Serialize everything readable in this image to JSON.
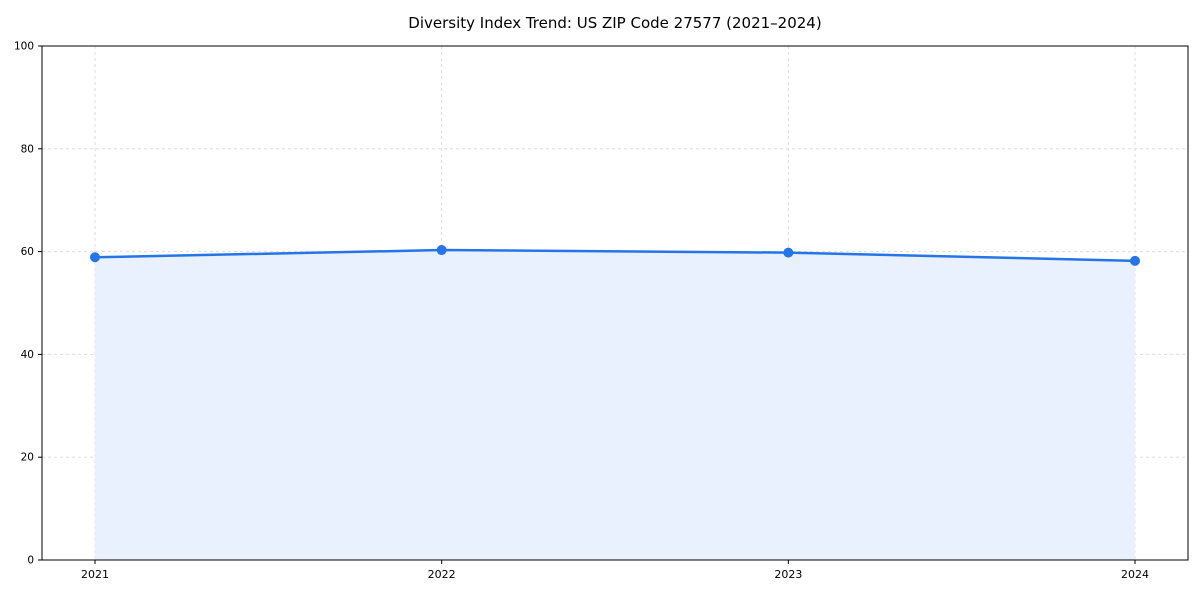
{
  "chart_data": {
    "type": "line",
    "title": "Diversity Index Trend: US ZIP Code 27577 (2021–2024)",
    "categories": [
      "2021",
      "2022",
      "2023",
      "2024"
    ],
    "series": [
      {
        "name": "Diversity Index",
        "values": [
          58.9,
          60.3,
          59.8,
          58.2
        ]
      }
    ],
    "xlabel": "",
    "ylabel": "",
    "ylim": [
      0,
      100
    ],
    "yticks": [
      0,
      20,
      40,
      60,
      80,
      100
    ],
    "grid": true,
    "legend_position": "none",
    "line_color": "#2575e8",
    "fill_color": "#e8f1fd",
    "marker": "circle",
    "area_fill": true
  }
}
